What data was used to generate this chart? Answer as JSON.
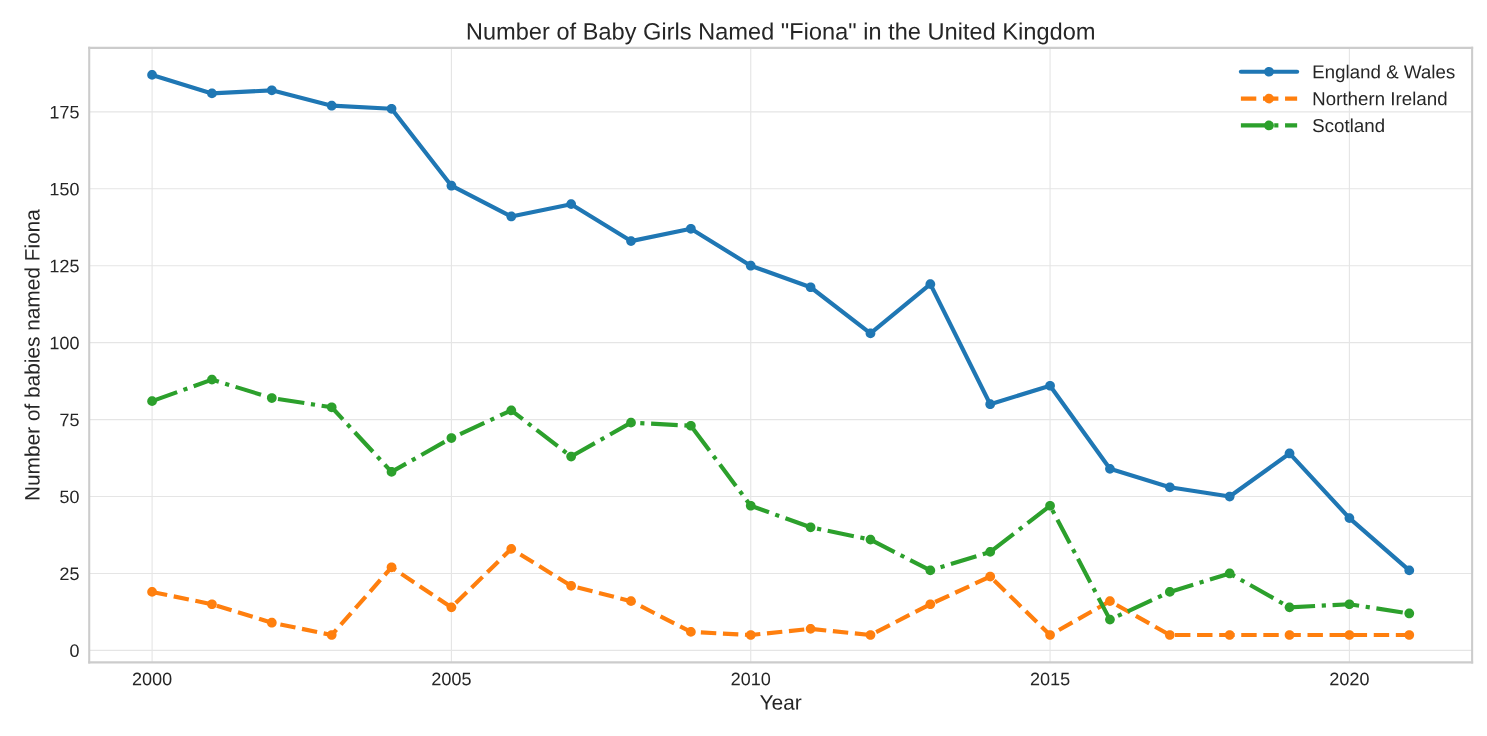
{
  "chart_data": {
    "type": "line",
    "title": "Number of Baby Girls Named \"Fiona\" in the United Kingdom",
    "xlabel": "Year",
    "ylabel": "Number of babies named Fiona",
    "x": [
      2000,
      2001,
      2002,
      2003,
      2004,
      2005,
      2006,
      2007,
      2008,
      2009,
      2010,
      2011,
      2012,
      2013,
      2014,
      2015,
      2016,
      2017,
      2018,
      2019,
      2020,
      2021
    ],
    "series": [
      {
        "name": "England & Wales",
        "color": "#1f77b4",
        "line_style": "solid",
        "values": [
          187,
          181,
          182,
          177,
          176,
          151,
          141,
          145,
          133,
          137,
          125,
          118,
          103,
          119,
          80,
          86,
          59,
          53,
          50,
          64,
          43,
          26
        ]
      },
      {
        "name": "Northern Ireland",
        "color": "#ff7f0e",
        "line_style": "dashed",
        "values": [
          19,
          15,
          9,
          5,
          27,
          14,
          33,
          21,
          16,
          6,
          5,
          7,
          5,
          15,
          24,
          5,
          16,
          5,
          5,
          5,
          5,
          5
        ]
      },
      {
        "name": "Scotland",
        "color": "#2ca02c",
        "line_style": "dashdot",
        "values": [
          81,
          88,
          82,
          79,
          58,
          69,
          78,
          63,
          74,
          73,
          47,
          40,
          36,
          26,
          32,
          47,
          10,
          19,
          25,
          14,
          15,
          12
        ]
      }
    ],
    "xlim": [
      1998.95,
      2022.05
    ],
    "ylim": [
      -3.9,
      195.8
    ],
    "xticks": [
      2000,
      2005,
      2010,
      2015,
      2020
    ],
    "yticks": [
      0,
      25,
      50,
      75,
      100,
      125,
      150,
      175
    ],
    "grid": true,
    "legend": "top right",
    "marker": "circle"
  }
}
